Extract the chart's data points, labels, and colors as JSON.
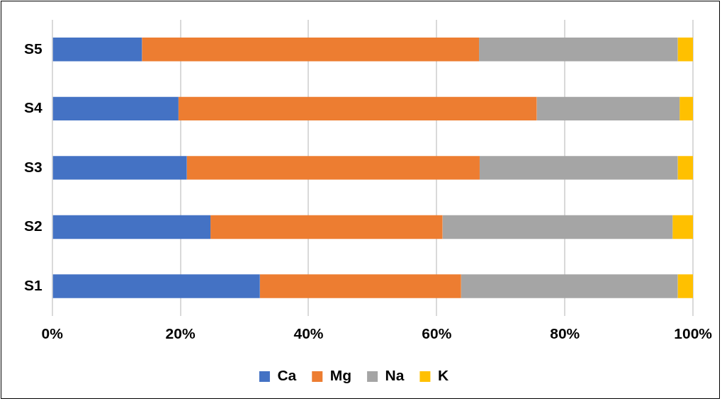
{
  "chart_data": {
    "type": "bar",
    "orientation": "horizontal",
    "stacked": true,
    "categories": [
      "S5",
      "S4",
      "S3",
      "S2",
      "S1"
    ],
    "series": [
      {
        "name": "Ca",
        "color": "#4472c4",
        "values": [
          14.0,
          19.7,
          21.0,
          24.7,
          32.4
        ]
      },
      {
        "name": "Mg",
        "color": "#ed7d31",
        "values": [
          52.6,
          55.9,
          45.7,
          36.2,
          31.4
        ]
      },
      {
        "name": "Na",
        "color": "#a5a5a5",
        "values": [
          31.0,
          22.3,
          30.9,
          35.9,
          33.8
        ]
      },
      {
        "name": "K",
        "color": "#ffc000",
        "values": [
          2.4,
          2.1,
          2.4,
          3.2,
          2.4
        ]
      }
    ],
    "xlim": [
      0,
      100
    ],
    "xticks": [
      {
        "value": 0,
        "label": "0%"
      },
      {
        "value": 20,
        "label": "20%"
      },
      {
        "value": 40,
        "label": "40%"
      },
      {
        "value": 60,
        "label": "60%"
      },
      {
        "value": 80,
        "label": "80%"
      },
      {
        "value": 100,
        "label": "100%"
      }
    ],
    "grid": "x",
    "legend": "bottom"
  }
}
